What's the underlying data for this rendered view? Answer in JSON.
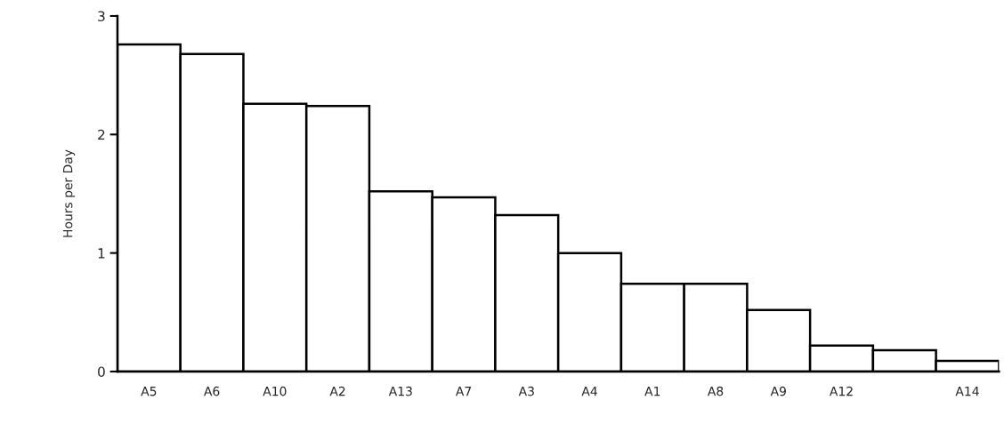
{
  "chart_data": {
    "type": "bar",
    "ylabel": "Hours per Day",
    "categories": [
      "A5",
      "A6",
      "A10",
      "A2",
      "A13",
      "A7",
      "A3",
      "A4",
      "A1",
      "A8",
      "A9",
      "A12",
      null,
      "A14"
    ],
    "values": [
      2.76,
      2.68,
      2.26,
      2.24,
      1.52,
      1.47,
      1.32,
      1.0,
      0.74,
      0.74,
      0.52,
      0.22,
      0.18,
      0.09
    ],
    "color": "#ffffff",
    "ylim": [
      0,
      3
    ],
    "yticks": [
      0,
      1,
      2,
      3
    ],
    "grid": false,
    "legend": false
  }
}
